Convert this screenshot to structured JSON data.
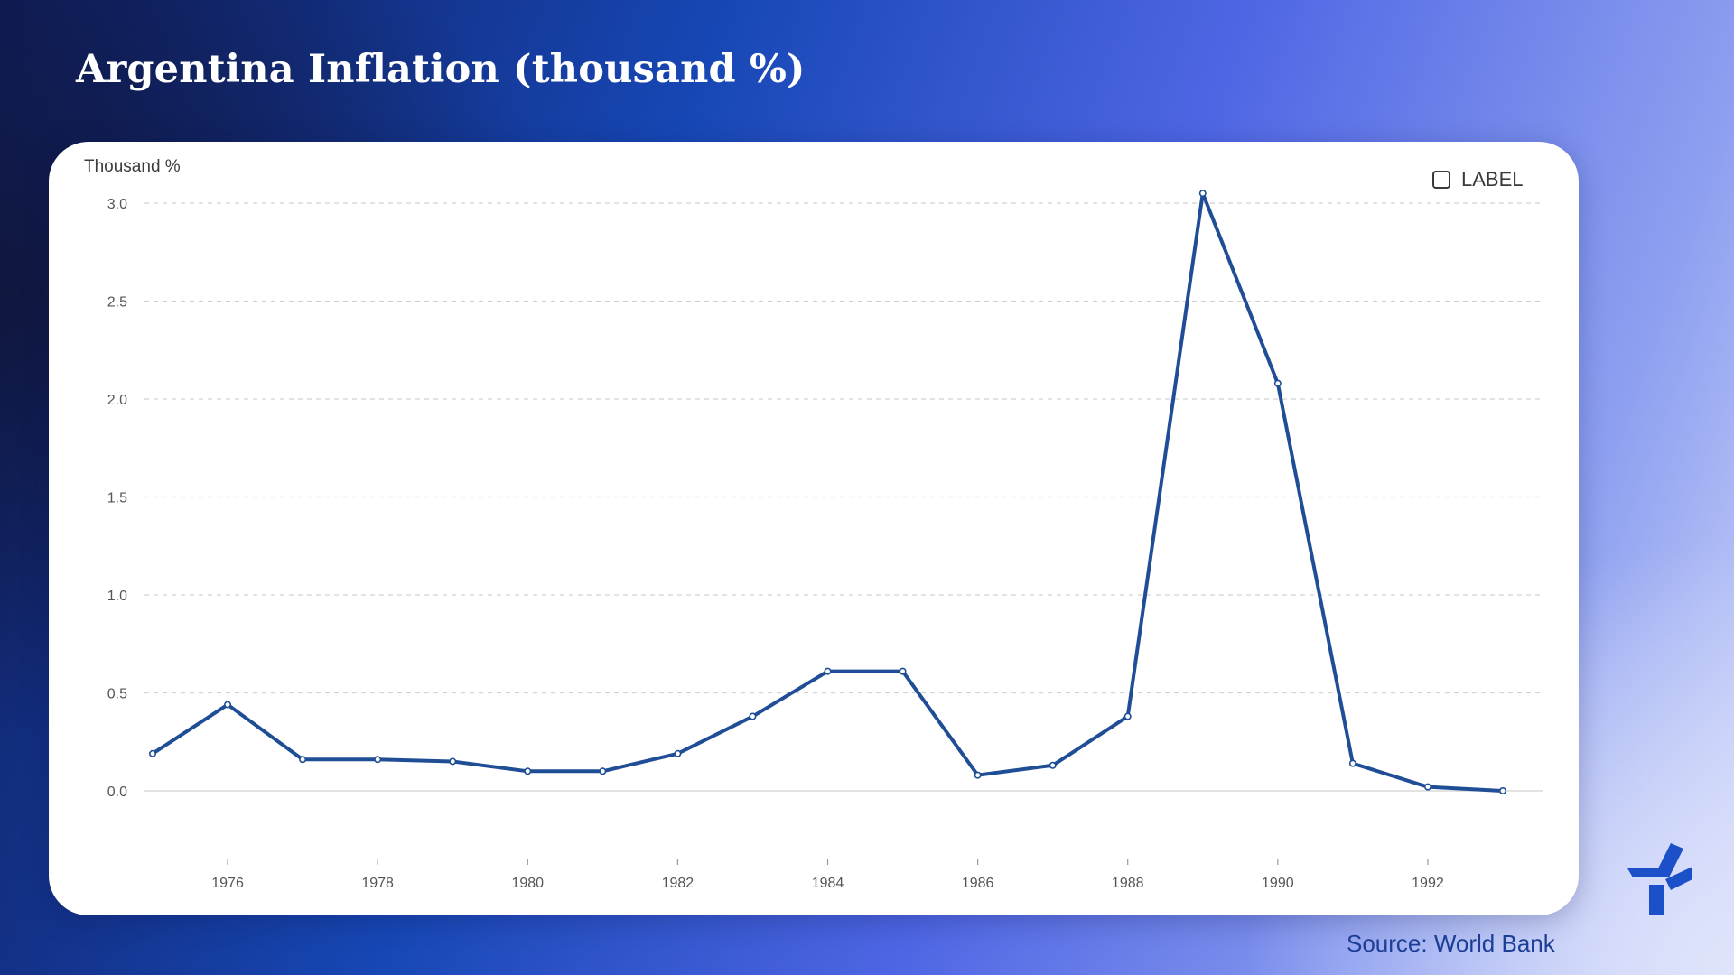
{
  "header": {
    "title": "Argentina Inflation (thousand %)"
  },
  "legend": {
    "label": "LABEL"
  },
  "footer": {
    "source": "Source: World Bank"
  },
  "colors": {
    "line": "#1f4e96",
    "grid": "#d2d2d2",
    "axis_text": "#555555"
  },
  "icons": {
    "logo": "brand-logo-icon",
    "legend_toggle": "checkbox-icon"
  },
  "chart_data": {
    "type": "line",
    "ylabel": "Thousand %",
    "ylim": [
      0,
      3.0
    ],
    "yticks": [
      "0.0",
      "0.5",
      "1.0",
      "1.5",
      "2.0",
      "2.5",
      "3.0"
    ],
    "xticks": [
      1976,
      1978,
      1980,
      1982,
      1984,
      1986,
      1988,
      1990,
      1992
    ],
    "grid": true,
    "legend_position": "top-right",
    "x": [
      1975,
      1976,
      1977,
      1978,
      1979,
      1980,
      1981,
      1982,
      1983,
      1984,
      1985,
      1986,
      1987,
      1988,
      1989,
      1990,
      1991,
      1992,
      1993
    ],
    "series": [
      {
        "values": [
          0.19,
          0.44,
          0.16,
          0.16,
          0.15,
          0.1,
          0.1,
          0.19,
          0.38,
          0.61,
          0.61,
          0.08,
          0.13,
          0.38,
          3.05,
          2.08,
          0.14,
          0.02,
          0.0
        ]
      }
    ]
  }
}
